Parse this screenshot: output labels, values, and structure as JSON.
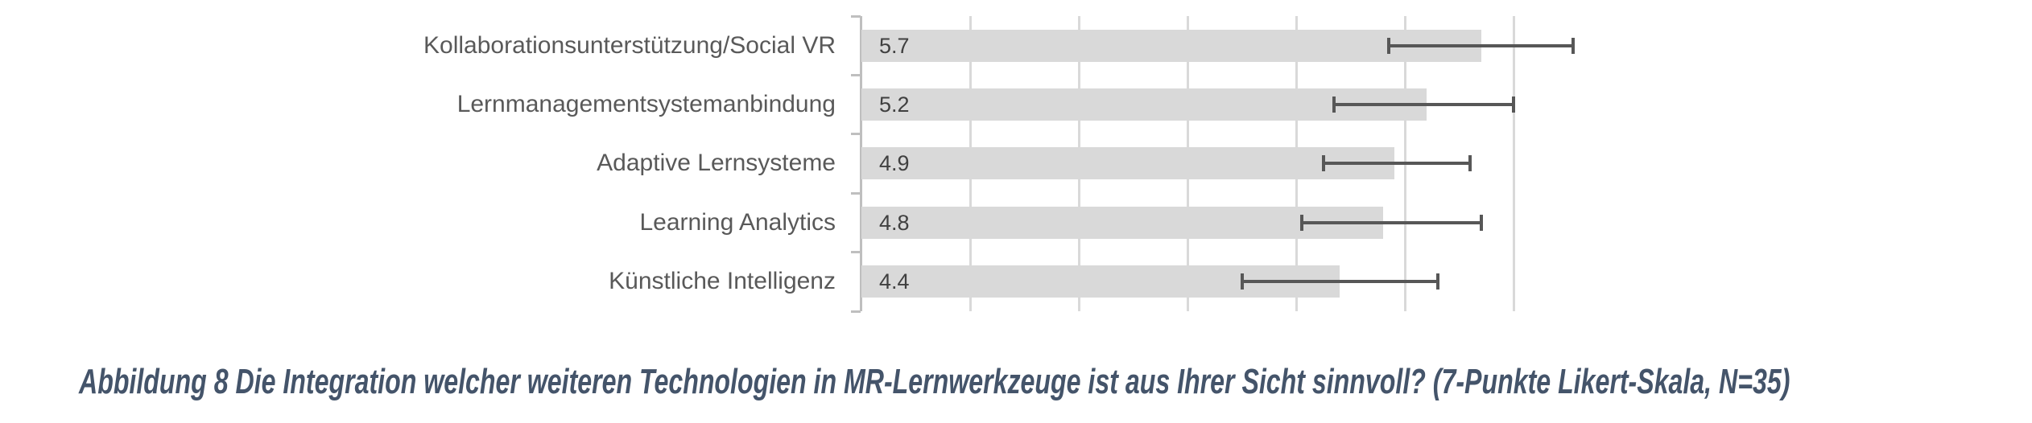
{
  "caption": "Abbildung 8 Die Integration welcher weiteren Technologien in MR-Lernwerkzeuge ist aus Ihrer Sicht sinnvoll? (7-Punkte Likert-Skala, N=35)",
  "chart_data": {
    "type": "bar",
    "orientation": "horizontal",
    "title": "",
    "xlabel": "",
    "ylabel": "",
    "xlim": [
      0,
      7
    ],
    "x_gridlines": [
      1,
      2,
      3,
      4,
      5,
      6
    ],
    "grid": "on",
    "legend": "none",
    "scale_note": "7-Punkte Likert-Skala",
    "n": 35,
    "categories": [
      "Kollaborationsunterstützung/Social VR",
      "Lernmanagementsystemanbindung",
      "Adaptive Lernsysteme",
      "Learning Analytics",
      "Künstliche Intelligenz"
    ],
    "values": [
      5.7,
      5.2,
      4.9,
      4.8,
      4.4
    ],
    "data_labels": [
      "5.7",
      "5.2",
      "4.9",
      "4.8",
      "4.4"
    ],
    "error_bars": [
      {
        "low": 4.85,
        "high": 6.55
      },
      {
        "low": 4.35,
        "high": 6.0
      },
      {
        "low": 4.25,
        "high": 5.6
      },
      {
        "low": 4.05,
        "high": 5.7
      },
      {
        "low": 3.5,
        "high": 5.3
      }
    ],
    "colors": {
      "bar_fill": "#d9d9d9",
      "gridline": "#d9d9d9",
      "axis_line": "#bfbfbf",
      "tick": "#bfbfbf",
      "error_bar": "#575757",
      "value_label": "#404040",
      "category_label": "#595959",
      "caption_text": "#44546A",
      "background": "#ffffff"
    }
  }
}
